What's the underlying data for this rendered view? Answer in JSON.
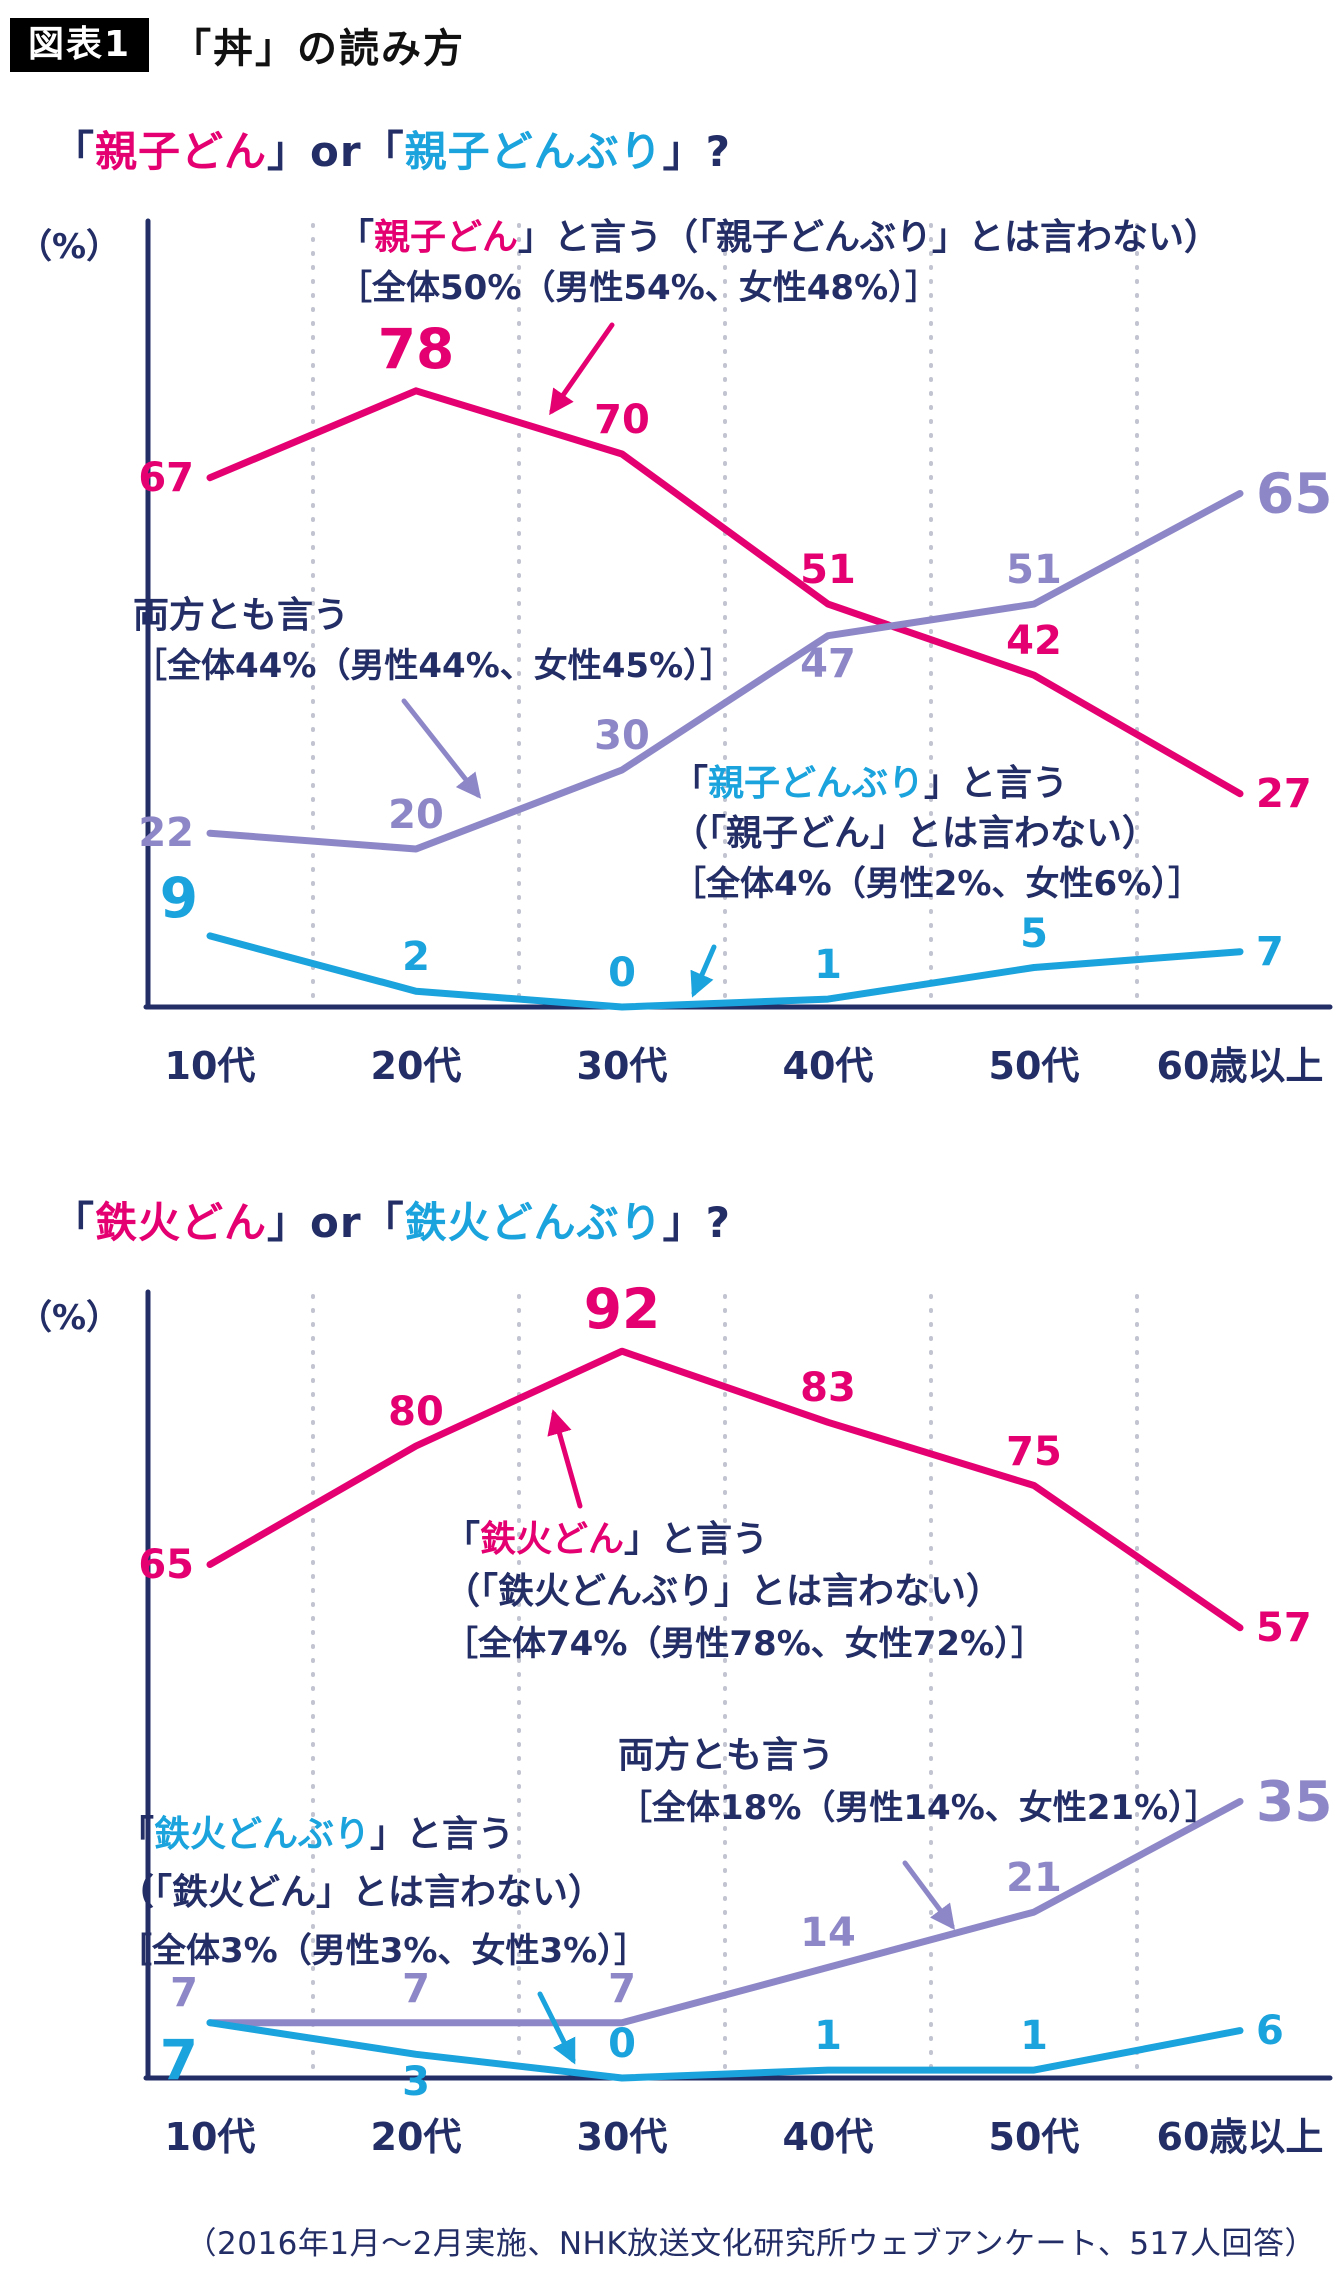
{
  "header": {
    "badge": "図表1",
    "title": "「丼」の読み方"
  },
  "footer": {
    "caption": "（2016年1月～2月実施、NHK放送文化研究所ウェブアンケート、517人回答）"
  },
  "colors": {
    "pink": "#e50072",
    "purple": "#8d87c7",
    "blue": "#1aa3dc",
    "navy": "#232d66",
    "grid": "#c2c5d1",
    "black": "#111111"
  },
  "chart_data": [
    {
      "type": "line",
      "title_segments": [
        {
          "text": "「",
          "color": "navy"
        },
        {
          "text": "親子どん",
          "color": "pink"
        },
        {
          "text": "」or「",
          "color": "navy"
        },
        {
          "text": "親子どんぶり",
          "color": "blue"
        },
        {
          "text": "」?",
          "color": "navy"
        }
      ],
      "ylabel": "（%）",
      "categories": [
        "10代",
        "20代",
        "30代",
        "40代",
        "50代",
        "60歳以上"
      ],
      "ylim": [
        0,
        100
      ],
      "grid": "dotted-vertical",
      "legend_position": "annotated-inline",
      "series": [
        {
          "name": "「親子どん」と言う（「親子どんぶり」とは言わない）",
          "color": "pink",
          "values": [
            67,
            78,
            70,
            51,
            42,
            27
          ],
          "label_pos": [
            "left",
            "above",
            "above",
            "above",
            "above",
            "right"
          ],
          "big_labels": [
            1
          ]
        },
        {
          "name": "両方とも言う",
          "color": "purple",
          "values": [
            22,
            20,
            30,
            47,
            51,
            65
          ],
          "label_pos": [
            "left",
            "above",
            "above",
            "below",
            "above",
            "right"
          ],
          "big_labels": [
            5
          ]
        },
        {
          "name": "「親子どんぶり」と言う（「親子どん」とは言わない）",
          "color": "blue",
          "values": [
            9,
            2,
            0,
            1,
            5,
            7
          ],
          "label_pos": [
            "left-up",
            "above",
            "above",
            "above",
            "above",
            "right"
          ],
          "big_labels": [
            0
          ]
        }
      ],
      "annotations": [
        {
          "id": "pink",
          "color": "pink",
          "lines": [
            {
              "sub": false,
              "segments": [
                {
                  "text": "「",
                  "color": "navy"
                },
                {
                  "text": "親子どん",
                  "color": "pink"
                },
                {
                  "text": "」と言う（「親子どんぶり」とは言わない）",
                  "color": "navy"
                }
              ]
            },
            {
              "sub": true,
              "segments": [
                {
                  "text": "［全体50%（男性54%、女性48%）］",
                  "color": "navy"
                }
              ]
            }
          ]
        },
        {
          "id": "purple",
          "color": "purple",
          "lines": [
            {
              "sub": false,
              "segments": [
                {
                  "text": "両方とも言う",
                  "color": "navy"
                }
              ]
            },
            {
              "sub": true,
              "segments": [
                {
                  "text": "［全体44%（男性44%、女性45%）］",
                  "color": "navy"
                }
              ]
            }
          ]
        },
        {
          "id": "blue",
          "color": "blue",
          "lines": [
            {
              "sub": false,
              "segments": [
                {
                  "text": "「",
                  "color": "navy"
                },
                {
                  "text": "親子どんぶり",
                  "color": "blue"
                },
                {
                  "text": "」と言う",
                  "color": "navy"
                }
              ]
            },
            {
              "sub": false,
              "segments": [
                {
                  "text": "（「親子どん」とは言わない）",
                  "color": "navy"
                }
              ]
            },
            {
              "sub": true,
              "segments": [
                {
                  "text": "［全体4%（男性2%、女性6%）］",
                  "color": "navy"
                }
              ]
            }
          ]
        }
      ]
    },
    {
      "type": "line",
      "title_segments": [
        {
          "text": "「",
          "color": "navy"
        },
        {
          "text": "鉄火どん",
          "color": "pink"
        },
        {
          "text": "」or「",
          "color": "navy"
        },
        {
          "text": "鉄火どんぶり",
          "color": "blue"
        },
        {
          "text": "」?",
          "color": "navy"
        }
      ],
      "ylabel": "（%）",
      "categories": [
        "10代",
        "20代",
        "30代",
        "40代",
        "50代",
        "60歳以上"
      ],
      "ylim": [
        0,
        100
      ],
      "grid": "dotted-vertical",
      "legend_position": "annotated-inline",
      "series": [
        {
          "name": "「鉄火どん」と言う（「鉄火どんぶり」とは言わない）",
          "color": "pink",
          "values": [
            65,
            80,
            92,
            83,
            75,
            57
          ],
          "label_pos": [
            "left",
            "above",
            "above",
            "above",
            "above",
            "right"
          ],
          "big_labels": [
            2
          ]
        },
        {
          "name": "両方とも言う",
          "color": "purple",
          "values": [
            7,
            7,
            7,
            14,
            21,
            35
          ],
          "label_pos": [
            "left-up",
            "above",
            "above",
            "above",
            "above",
            "right"
          ],
          "big_labels": [
            5
          ]
        },
        {
          "name": "「鉄火どんぶり」と言う（「鉄火どん」とは言わない）",
          "color": "blue",
          "values": [
            7,
            3,
            0,
            1,
            1,
            6
          ],
          "label_pos": [
            "left-down",
            "below",
            "above",
            "above",
            "above",
            "right"
          ],
          "big_labels": [
            0
          ]
        }
      ],
      "annotations": [
        {
          "id": "pink",
          "color": "pink",
          "lines": [
            {
              "sub": false,
              "segments": [
                {
                  "text": "「",
                  "color": "navy"
                },
                {
                  "text": "鉄火どん",
                  "color": "pink"
                },
                {
                  "text": "」と言う",
                  "color": "navy"
                }
              ]
            },
            {
              "sub": false,
              "segments": [
                {
                  "text": "（「鉄火どんぶり」とは言わない）",
                  "color": "navy"
                }
              ]
            },
            {
              "sub": true,
              "segments": [
                {
                  "text": "［全体74%（男性78%、女性72%）］",
                  "color": "navy"
                }
              ]
            }
          ]
        },
        {
          "id": "purple",
          "color": "purple",
          "lines": [
            {
              "sub": false,
              "segments": [
                {
                  "text": "両方とも言う",
                  "color": "navy"
                }
              ]
            },
            {
              "sub": true,
              "segments": [
                {
                  "text": "［全体18%（男性14%、女性21%）］",
                  "color": "navy"
                }
              ]
            }
          ]
        },
        {
          "id": "blue",
          "color": "blue",
          "lines": [
            {
              "sub": false,
              "segments": [
                {
                  "text": "「",
                  "color": "navy"
                },
                {
                  "text": "鉄火どんぶり",
                  "color": "blue"
                },
                {
                  "text": "」と言う",
                  "color": "navy"
                }
              ]
            },
            {
              "sub": false,
              "segments": [
                {
                  "text": "（「鉄火どん」とは言わない）",
                  "color": "navy"
                }
              ]
            },
            {
              "sub": true,
              "segments": [
                {
                  "text": "［全体3%（男性3%、女性3%）］",
                  "color": "navy"
                }
              ]
            }
          ]
        }
      ]
    }
  ]
}
